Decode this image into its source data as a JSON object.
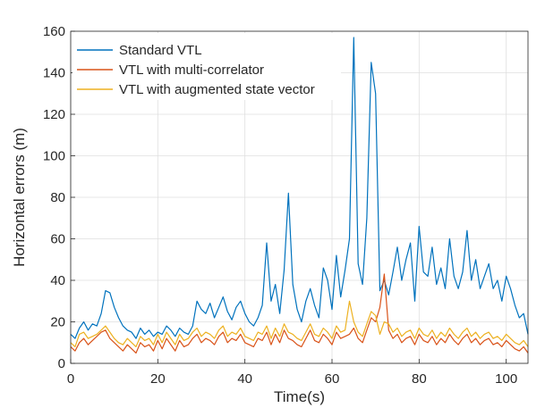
{
  "chart_data": {
    "type": "line",
    "title": "",
    "xlabel": "Time(s)",
    "ylabel": "Horizontal errors (m)",
    "xlim": [
      0,
      105
    ],
    "ylim": [
      0,
      160
    ],
    "xticks": [
      0,
      20,
      40,
      60,
      80,
      100
    ],
    "yticks": [
      0,
      20,
      40,
      60,
      80,
      100,
      120,
      140,
      160
    ],
    "grid": true,
    "legend_position": "top-left",
    "series": [
      {
        "name": "Standard VTL",
        "color": "#0072BD",
        "x": [
          0,
          1,
          2,
          3,
          4,
          5,
          6,
          7,
          8,
          9,
          10,
          11,
          12,
          13,
          14,
          15,
          16,
          17,
          18,
          19,
          20,
          21,
          22,
          23,
          24,
          25,
          26,
          27,
          28,
          29,
          30,
          31,
          32,
          33,
          34,
          35,
          36,
          37,
          38,
          39,
          40,
          41,
          42,
          43,
          44,
          45,
          46,
          47,
          48,
          49,
          50,
          51,
          52,
          53,
          54,
          55,
          56,
          57,
          58,
          59,
          60,
          61,
          62,
          63,
          64,
          65,
          66,
          67,
          68,
          69,
          70,
          71,
          72,
          73,
          74,
          75,
          76,
          77,
          78,
          79,
          80,
          81,
          82,
          83,
          84,
          85,
          86,
          87,
          88,
          89,
          90,
          91,
          92,
          93,
          94,
          95,
          96,
          97,
          98,
          99,
          100,
          101,
          102,
          103,
          104,
          105
        ],
        "y": [
          14,
          12,
          17,
          20,
          16,
          19,
          18,
          24,
          35,
          34,
          27,
          22,
          18,
          16,
          15,
          12,
          17,
          14,
          16,
          13,
          15,
          14,
          18,
          16,
          13,
          17,
          15,
          14,
          18,
          30,
          26,
          24,
          29,
          22,
          27,
          32,
          25,
          21,
          27,
          30,
          24,
          20,
          18,
          22,
          28,
          58,
          30,
          38,
          24,
          45,
          82,
          38,
          26,
          20,
          30,
          36,
          28,
          22,
          46,
          40,
          26,
          52,
          32,
          45,
          60,
          157,
          48,
          38,
          70,
          145,
          130,
          35,
          40,
          33,
          44,
          56,
          40,
          50,
          58,
          30,
          66,
          44,
          42,
          56,
          38,
          46,
          36,
          60,
          42,
          36,
          44,
          64,
          40,
          50,
          36,
          42,
          48,
          36,
          40,
          30,
          42,
          36,
          28,
          22,
          24,
          14
        ]
      },
      {
        "name": "VTL with multi-correlator",
        "color": "#D95319",
        "x": [
          0,
          1,
          2,
          3,
          4,
          5,
          6,
          7,
          8,
          9,
          10,
          11,
          12,
          13,
          14,
          15,
          16,
          17,
          18,
          19,
          20,
          21,
          22,
          23,
          24,
          25,
          26,
          27,
          28,
          29,
          30,
          31,
          32,
          33,
          34,
          35,
          36,
          37,
          38,
          39,
          40,
          41,
          42,
          43,
          44,
          45,
          46,
          47,
          48,
          49,
          50,
          51,
          52,
          53,
          54,
          55,
          56,
          57,
          58,
          59,
          60,
          61,
          62,
          63,
          64,
          65,
          66,
          67,
          68,
          69,
          70,
          71,
          72,
          73,
          74,
          75,
          76,
          77,
          78,
          79,
          80,
          81,
          82,
          83,
          84,
          85,
          86,
          87,
          88,
          89,
          90,
          91,
          92,
          93,
          94,
          95,
          96,
          97,
          98,
          99,
          100,
          101,
          102,
          103,
          104,
          105
        ],
        "y": [
          8,
          6,
          10,
          12,
          9,
          11,
          13,
          15,
          16,
          12,
          10,
          8,
          6,
          9,
          7,
          5,
          10,
          8,
          9,
          6,
          11,
          7,
          12,
          9,
          6,
          11,
          8,
          9,
          12,
          14,
          10,
          12,
          11,
          9,
          13,
          15,
          10,
          12,
          11,
          14,
          10,
          9,
          8,
          12,
          11,
          15,
          9,
          14,
          10,
          16,
          12,
          11,
          9,
          8,
          12,
          16,
          11,
          10,
          14,
          12,
          9,
          15,
          12,
          13,
          14,
          17,
          12,
          10,
          16,
          22,
          20,
          27,
          43,
          16,
          12,
          14,
          10,
          12,
          13,
          9,
          14,
          11,
          10,
          13,
          9,
          12,
          10,
          14,
          11,
          9,
          12,
          14,
          10,
          12,
          9,
          11,
          12,
          9,
          10,
          8,
          11,
          9,
          7,
          6,
          8,
          5
        ]
      },
      {
        "name": "VTL with augmented state vector",
        "color": "#EDB120",
        "x": [
          0,
          1,
          2,
          3,
          4,
          5,
          6,
          7,
          8,
          9,
          10,
          11,
          12,
          13,
          14,
          15,
          16,
          17,
          18,
          19,
          20,
          21,
          22,
          23,
          24,
          25,
          26,
          27,
          28,
          29,
          30,
          31,
          32,
          33,
          34,
          35,
          36,
          37,
          38,
          39,
          40,
          41,
          42,
          43,
          44,
          45,
          46,
          47,
          48,
          49,
          50,
          51,
          52,
          53,
          54,
          55,
          56,
          57,
          58,
          59,
          60,
          61,
          62,
          63,
          64,
          65,
          66,
          67,
          68,
          69,
          70,
          71,
          72,
          73,
          74,
          75,
          76,
          77,
          78,
          79,
          80,
          81,
          82,
          83,
          84,
          85,
          86,
          87,
          88,
          89,
          90,
          91,
          92,
          93,
          94,
          95,
          96,
          97,
          98,
          99,
          100,
          101,
          102,
          103,
          104,
          105
        ],
        "y": [
          10,
          8,
          14,
          15,
          12,
          13,
          14,
          16,
          18,
          15,
          12,
          10,
          9,
          12,
          10,
          8,
          13,
          11,
          12,
          9,
          14,
          10,
          15,
          12,
          9,
          14,
          11,
          12,
          15,
          17,
          13,
          15,
          14,
          12,
          16,
          18,
          13,
          15,
          14,
          17,
          13,
          12,
          11,
          15,
          14,
          18,
          12,
          17,
          13,
          19,
          15,
          14,
          12,
          11,
          15,
          19,
          14,
          13,
          17,
          15,
          12,
          18,
          15,
          16,
          30,
          20,
          15,
          13,
          19,
          25,
          23,
          14,
          20,
          19,
          15,
          17,
          13,
          15,
          16,
          12,
          17,
          14,
          13,
          16,
          12,
          15,
          13,
          17,
          14,
          12,
          15,
          17,
          13,
          15,
          12,
          14,
          15,
          12,
          13,
          11,
          14,
          12,
          10,
          9,
          11,
          8
        ]
      }
    ]
  }
}
